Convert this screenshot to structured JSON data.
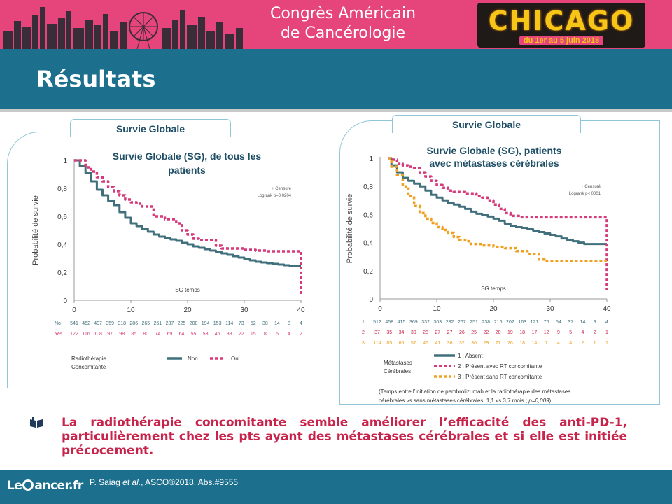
{
  "header": {
    "congress_line1": "Congrès Américain",
    "congress_line2": "de Cancérologie",
    "city": "CHICAGO",
    "dates": "du 1er au 5 juin 2018",
    "brand_color": "#e5457a",
    "band_color": "#1c6f8d"
  },
  "slide_title": "Résultats",
  "conclusion": "La radiothérapie concomitante semble améliorer l’efficacité des anti-PD-1, particulièrement chez les pts ayant des métastases cérébrales et si elle est initiée précocement.",
  "conclusion_icon": "book-icon",
  "footer": {
    "logo_left": "Le",
    "logo_right": "ancer.fr",
    "citation_author": "P. Saiag ",
    "citation_etal": "et al.",
    "citation_rest": ", ASCO®2018, Abs.#9555"
  },
  "chart_data": [
    {
      "type": "line",
      "panel_label": "Survie Globale",
      "title_line1": "Survie Globale (SG), de tous les",
      "title_line2": "patients",
      "xlabel": "SG temps",
      "ylabel": "Probabilité de survie",
      "xlim": [
        0,
        40
      ],
      "ylim": [
        0,
        1
      ],
      "x_ticks": [
        "0",
        "10",
        "20",
        "30",
        "40"
      ],
      "y_ticks": [
        "0",
        "0,2",
        "0,4",
        "0,6",
        "0,8",
        "1"
      ],
      "annotation_line1": "+ Censuré",
      "annotation_line2": "Logrank p=0.0204",
      "legend_title_line1": "Radiothérapie",
      "legend_title_line2": "Concomitante",
      "series": [
        {
          "name": "Non",
          "color": "#41707c",
          "style": "solid",
          "points": [
            [
              0,
              1
            ],
            [
              1,
              0.96
            ],
            [
              2,
              0.91
            ],
            [
              3,
              0.85
            ],
            [
              4,
              0.79
            ],
            [
              5,
              0.75
            ],
            [
              6,
              0.71
            ],
            [
              7,
              0.68
            ],
            [
              8,
              0.63
            ],
            [
              9,
              0.59
            ],
            [
              10,
              0.55
            ],
            [
              11,
              0.53
            ],
            [
              12,
              0.51
            ],
            [
              13,
              0.49
            ],
            [
              14,
              0.47
            ],
            [
              15,
              0.455
            ],
            [
              16,
              0.445
            ],
            [
              17,
              0.435
            ],
            [
              18,
              0.425
            ],
            [
              19,
              0.41
            ],
            [
              20,
              0.4
            ],
            [
              21,
              0.385
            ],
            [
              22,
              0.375
            ],
            [
              23,
              0.365
            ],
            [
              24,
              0.355
            ],
            [
              25,
              0.345
            ],
            [
              26,
              0.335
            ],
            [
              27,
              0.325
            ],
            [
              28,
              0.315
            ],
            [
              29,
              0.305
            ],
            [
              30,
              0.295
            ],
            [
              31,
              0.285
            ],
            [
              32,
              0.275
            ],
            [
              33,
              0.27
            ],
            [
              34,
              0.265
            ],
            [
              35,
              0.26
            ],
            [
              36,
              0.255
            ],
            [
              37,
              0.25
            ],
            [
              38,
              0.245
            ],
            [
              39,
              0.245
            ],
            [
              40,
              0.245
            ]
          ]
        },
        {
          "name": "Oui",
          "color": "#d63a7a",
          "style": "dashed",
          "points": [
            [
              0,
              1
            ],
            [
              2,
              0.95
            ],
            [
              3,
              0.92
            ],
            [
              4,
              0.88
            ],
            [
              5,
              0.85
            ],
            [
              6,
              0.81
            ],
            [
              7,
              0.78
            ],
            [
              8,
              0.75
            ],
            [
              9,
              0.72
            ],
            [
              10,
              0.7
            ],
            [
              11,
              0.69
            ],
            [
              12,
              0.67
            ],
            [
              14,
              0.6
            ],
            [
              16,
              0.58
            ],
            [
              18,
              0.55
            ],
            [
              19,
              0.5
            ],
            [
              20,
              0.47
            ],
            [
              21,
              0.44
            ],
            [
              22,
              0.43
            ],
            [
              24,
              0.43
            ],
            [
              25,
              0.39
            ],
            [
              26,
              0.37
            ],
            [
              28,
              0.37
            ],
            [
              30,
              0.36
            ],
            [
              32,
              0.355
            ],
            [
              34,
              0.35
            ],
            [
              36,
              0.35
            ],
            [
              38,
              0.35
            ],
            [
              40,
              0.35
            ],
            [
              40,
              0.03
            ]
          ]
        }
      ],
      "risk_table": {
        "rows": [
          {
            "label": "No",
            "color": "#41707c",
            "values": [
              "541",
              "462",
              "407",
              "359",
              "318",
              "286",
              "265",
              "251",
              "237",
              "225",
              "208",
              "194",
              "153",
              "114",
              "73",
              "52",
              "38",
              "14",
              "8",
              "4"
            ]
          },
          {
            "label": "Yes",
            "color": "#d63a7a",
            "values": [
              "122",
              "116",
              "108",
              "97",
              "98",
              "85",
              "80",
              "74",
              "69",
              "64",
              "55",
              "53",
              "46",
              "38",
              "22",
              "15",
              "8",
              "6",
              "4",
              "2"
            ]
          }
        ]
      }
    },
    {
      "type": "line",
      "panel_label": "Survie Globale",
      "title_line1": "Survie Globale (SG), patients",
      "title_line2": "avec métastases cérébrales",
      "xlabel": "SG temps",
      "ylabel": "Probabilité de survie",
      "xlim": [
        0,
        40
      ],
      "ylim": [
        0,
        1
      ],
      "x_ticks": [
        "0",
        "10",
        "20",
        "30",
        "40"
      ],
      "y_ticks": [
        "0",
        "0,2",
        "0,4",
        "0,6",
        "0,8",
        "1"
      ],
      "annotation_line1": "+ Censuré",
      "annotation_line2": "Logrank p< 0001",
      "legend_title_line1": "Métastases",
      "legend_title_line2": "Cérébrales",
      "series": [
        {
          "name": "1 : Absent",
          "color": "#41707c",
          "style": "solid",
          "points": [
            [
              1.5,
              1
            ],
            [
              2,
              0.95
            ],
            [
              3,
              0.9
            ],
            [
              4,
              0.86
            ],
            [
              5,
              0.84
            ],
            [
              6,
              0.82
            ],
            [
              7,
              0.8
            ],
            [
              8,
              0.77
            ],
            [
              9,
              0.74
            ],
            [
              10,
              0.72
            ],
            [
              11,
              0.7
            ],
            [
              12,
              0.68
            ],
            [
              13,
              0.67
            ],
            [
              14,
              0.655
            ],
            [
              15,
              0.64
            ],
            [
              16,
              0.62
            ],
            [
              17,
              0.605
            ],
            [
              18,
              0.595
            ],
            [
              19,
              0.585
            ],
            [
              20,
              0.57
            ],
            [
              21,
              0.555
            ],
            [
              22,
              0.535
            ],
            [
              23,
              0.52
            ],
            [
              24,
              0.51
            ],
            [
              25,
              0.505
            ],
            [
              26,
              0.495
            ],
            [
              27,
              0.485
            ],
            [
              28,
              0.475
            ],
            [
              29,
              0.465
            ],
            [
              30,
              0.455
            ],
            [
              31,
              0.445
            ],
            [
              32,
              0.43
            ],
            [
              33,
              0.42
            ],
            [
              34,
              0.41
            ],
            [
              35,
              0.4
            ],
            [
              36,
              0.39
            ],
            [
              40,
              0.39
            ]
          ]
        },
        {
          "name": "2 : Présent avec RT concomitante",
          "color": "#d63a7a",
          "style": "dashed",
          "points": [
            [
              1.5,
              1
            ],
            [
              2,
              0.99
            ],
            [
              3,
              0.96
            ],
            [
              4,
              0.95
            ],
            [
              5,
              0.94
            ],
            [
              6,
              0.93
            ],
            [
              7,
              0.9
            ],
            [
              8,
              0.87
            ],
            [
              9,
              0.84
            ],
            [
              10,
              0.81
            ],
            [
              11,
              0.79
            ],
            [
              12,
              0.77
            ],
            [
              13,
              0.76
            ],
            [
              15,
              0.75
            ],
            [
              17,
              0.73
            ],
            [
              18,
              0.72
            ],
            [
              19,
              0.7
            ],
            [
              20,
              0.67
            ],
            [
              21,
              0.64
            ],
            [
              22,
              0.61
            ],
            [
              23,
              0.59
            ],
            [
              25,
              0.58
            ],
            [
              28,
              0.58
            ],
            [
              30,
              0.58
            ],
            [
              35,
              0.58
            ],
            [
              40,
              0.58
            ],
            [
              40,
              0.06
            ]
          ]
        },
        {
          "name": "3 : Présent sans RT concomitante",
          "color": "#f0a020",
          "style": "dashed",
          "points": [
            [
              1.5,
              1
            ],
            [
              2,
              0.94
            ],
            [
              3,
              0.88
            ],
            [
              4,
              0.8
            ],
            [
              5,
              0.73
            ],
            [
              6,
              0.66
            ],
            [
              7,
              0.61
            ],
            [
              8,
              0.57
            ],
            [
              9,
              0.54
            ],
            [
              10,
              0.51
            ],
            [
              11,
              0.49
            ],
            [
              12,
              0.47
            ],
            [
              13,
              0.44
            ],
            [
              14,
              0.42
            ],
            [
              15,
              0.41
            ],
            [
              16,
              0.39
            ],
            [
              17,
              0.39
            ],
            [
              18,
              0.38
            ],
            [
              20,
              0.37
            ],
            [
              22,
              0.36
            ],
            [
              24,
              0.34
            ],
            [
              26,
              0.32
            ],
            [
              28,
              0.28
            ],
            [
              29,
              0.27
            ],
            [
              30,
              0.27
            ],
            [
              33,
              0.27
            ],
            [
              36,
              0.27
            ],
            [
              40,
              0.27
            ]
          ]
        }
      ],
      "risk_table": {
        "rows": [
          {
            "label": "1",
            "color": "#41707c",
            "values": [
              "512",
              "458",
              "415",
              "369",
              "332",
              "303",
              "282",
              "267",
              "251",
              "238",
              "216",
              "202",
              "163",
              "121",
              "76",
              "54",
              "37",
              "14",
              "9",
              "4"
            ]
          },
          {
            "label": "2",
            "color": "#c8234a",
            "values": [
              "37",
              "35",
              "34",
              "30",
              "28",
              "27",
              "27",
              "26",
              "25",
              "22",
              "20",
              "19",
              "18",
              "17",
              "12",
              "9",
              "5",
              "4",
              "2",
              "1"
            ]
          },
          {
            "label": "3",
            "color": "#f0a020",
            "values": [
              "114",
              "85",
              "66",
              "57",
              "46",
              "41",
              "36",
              "32",
              "30",
              "29",
              "27",
              "26",
              "18",
              "14",
              "7",
              "4",
              "4",
              "2",
              "1",
              "1"
            ]
          }
        ]
      },
      "note_line1": "(Temps entre l’initiation de pembrolizumab et la radiothérapie des métastases",
      "note_line2_a": "cérébrales ",
      "note_line2_vs": "vs",
      "note_line2_b": " sans métastases cérébrales: 1,1 vs 3,7 mois ; ",
      "note_line2_p": "p=0,009",
      "note_line2_c": ")"
    }
  ]
}
